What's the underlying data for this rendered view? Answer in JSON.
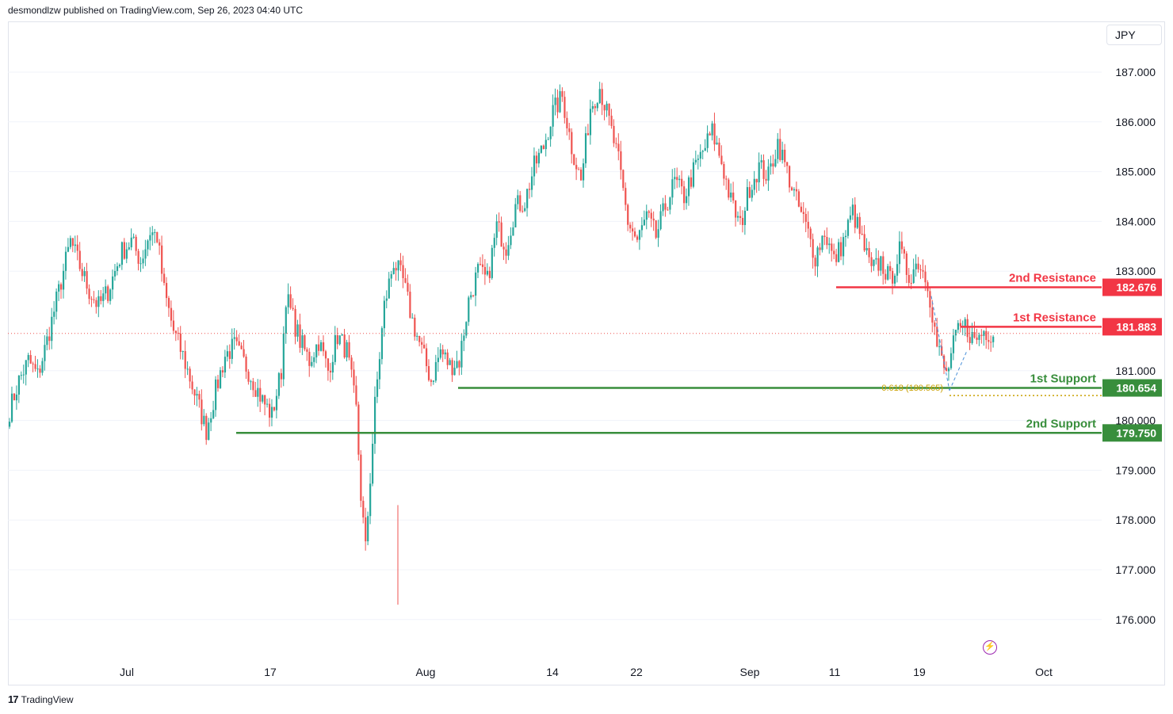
{
  "header": {
    "publisher": "desmondlzw published on TradingView.com, Sep 26, 2023 04:40 UTC"
  },
  "currency_label": "JPY",
  "footer": {
    "logo_mark": "17",
    "brand": "TradingView"
  },
  "icons": {
    "alert": "lightning-bolt-icon"
  },
  "colors": {
    "up": "#26a69a",
    "down": "#ef5350",
    "resistance": "#f23645",
    "support": "#388e3c",
    "fib": "#c9a000",
    "grid": "#f0f3fa"
  },
  "chart_data": {
    "type": "candlestick",
    "timeframe_hint": "4H",
    "ylim": [
      175.6,
      187.4
    ],
    "y_ticks": [
      "187.000",
      "186.000",
      "185.000",
      "184.000",
      "183.000",
      "181.000",
      "180.000",
      "179.000",
      "178.000",
      "177.000",
      "176.000"
    ],
    "x_ticks": [
      "Jul",
      "17",
      "Aug",
      "14",
      "22",
      "Sep",
      "11",
      "19",
      "Oct"
    ],
    "last_price": 181.75,
    "levels": [
      {
        "name": "2nd Resistance",
        "value": 182.676,
        "label": "182.676",
        "kind": "resistance"
      },
      {
        "name": "1st Resistance",
        "value": 181.883,
        "label": "181.883",
        "kind": "resistance"
      },
      {
        "name": "1st Support",
        "value": 180.654,
        "label": "180.654",
        "kind": "support"
      },
      {
        "name": "2nd Support",
        "value": 179.75,
        "label": "179.750",
        "kind": "support"
      }
    ],
    "fib_label": "0.618 (180.565)",
    "fib_value": 180.565,
    "path": [
      [
        0,
        180.2
      ],
      [
        4,
        180.8
      ],
      [
        8,
        181.2
      ],
      [
        12,
        180.9
      ],
      [
        16,
        181.6
      ],
      [
        22,
        182.8
      ],
      [
        26,
        183.6
      ],
      [
        30,
        183.1
      ],
      [
        34,
        182.6
      ],
      [
        38,
        182.3
      ],
      [
        42,
        182.6
      ],
      [
        48,
        183.4
      ],
      [
        52,
        183.6
      ],
      [
        56,
        183.2
      ],
      [
        60,
        183.8
      ],
      [
        63,
        183.7
      ],
      [
        66,
        182.6
      ],
      [
        70,
        181.8
      ],
      [
        74,
        181.3
      ],
      [
        80,
        180.4
      ],
      [
        84,
        179.8
      ],
      [
        88,
        180.6
      ],
      [
        92,
        181.3
      ],
      [
        96,
        181.5
      ],
      [
        102,
        181.0
      ],
      [
        108,
        180.4
      ],
      [
        112,
        180.1
      ],
      [
        116,
        181.0
      ],
      [
        118,
        182.5
      ],
      [
        124,
        181.6
      ],
      [
        128,
        181.2
      ],
      [
        132,
        181.6
      ],
      [
        136,
        181.0
      ],
      [
        140,
        181.7
      ],
      [
        144,
        181.4
      ],
      [
        148,
        180.2
      ],
      [
        150,
        178.5
      ],
      [
        152,
        177.4
      ],
      [
        156,
        180.3
      ],
      [
        160,
        182.3
      ],
      [
        164,
        183.2
      ],
      [
        168,
        182.8
      ],
      [
        172,
        182.0
      ],
      [
        176,
        181.4
      ],
      [
        180,
        180.8
      ],
      [
        184,
        181.4
      ],
      [
        188,
        181.1
      ],
      [
        192,
        181.2
      ],
      [
        196,
        182.4
      ],
      [
        200,
        183.0
      ],
      [
        204,
        182.8
      ],
      [
        208,
        183.9
      ],
      [
        212,
        183.5
      ],
      [
        216,
        184.3
      ],
      [
        220,
        184.4
      ],
      [
        224,
        185.1
      ],
      [
        228,
        185.5
      ],
      [
        232,
        186.2
      ],
      [
        236,
        186.5
      ],
      [
        240,
        185.5
      ],
      [
        244,
        184.8
      ],
      [
        248,
        186.3
      ],
      [
        252,
        186.7
      ],
      [
        256,
        186.0
      ],
      [
        260,
        185.2
      ],
      [
        264,
        184.0
      ],
      [
        268,
        183.6
      ],
      [
        272,
        184.1
      ],
      [
        276,
        183.7
      ],
      [
        280,
        184.3
      ],
      [
        284,
        184.8
      ],
      [
        288,
        184.5
      ],
      [
        292,
        185.0
      ],
      [
        296,
        185.4
      ],
      [
        300,
        185.8
      ],
      [
        304,
        185.2
      ],
      [
        308,
        184.4
      ],
      [
        312,
        183.9
      ],
      [
        316,
        184.7
      ],
      [
        320,
        185.1
      ],
      [
        324,
        184.9
      ],
      [
        328,
        185.6
      ],
      [
        332,
        185.0
      ],
      [
        336,
        184.4
      ],
      [
        340,
        183.9
      ],
      [
        344,
        183.3
      ],
      [
        348,
        183.8
      ],
      [
        352,
        183.2
      ],
      [
        356,
        183.6
      ],
      [
        360,
        184.2
      ],
      [
        364,
        183.6
      ],
      [
        368,
        183.0
      ],
      [
        372,
        183.2
      ],
      [
        376,
        182.8
      ],
      [
        380,
        183.4
      ],
      [
        384,
        182.9
      ],
      [
        388,
        183.2
      ],
      [
        392,
        182.8
      ],
      [
        396,
        181.5
      ],
      [
        400,
        180.9
      ],
      [
        404,
        181.7
      ],
      [
        408,
        181.9
      ],
      [
        412,
        181.6
      ],
      [
        416,
        181.8
      ],
      [
        420,
        181.75
      ]
    ]
  }
}
